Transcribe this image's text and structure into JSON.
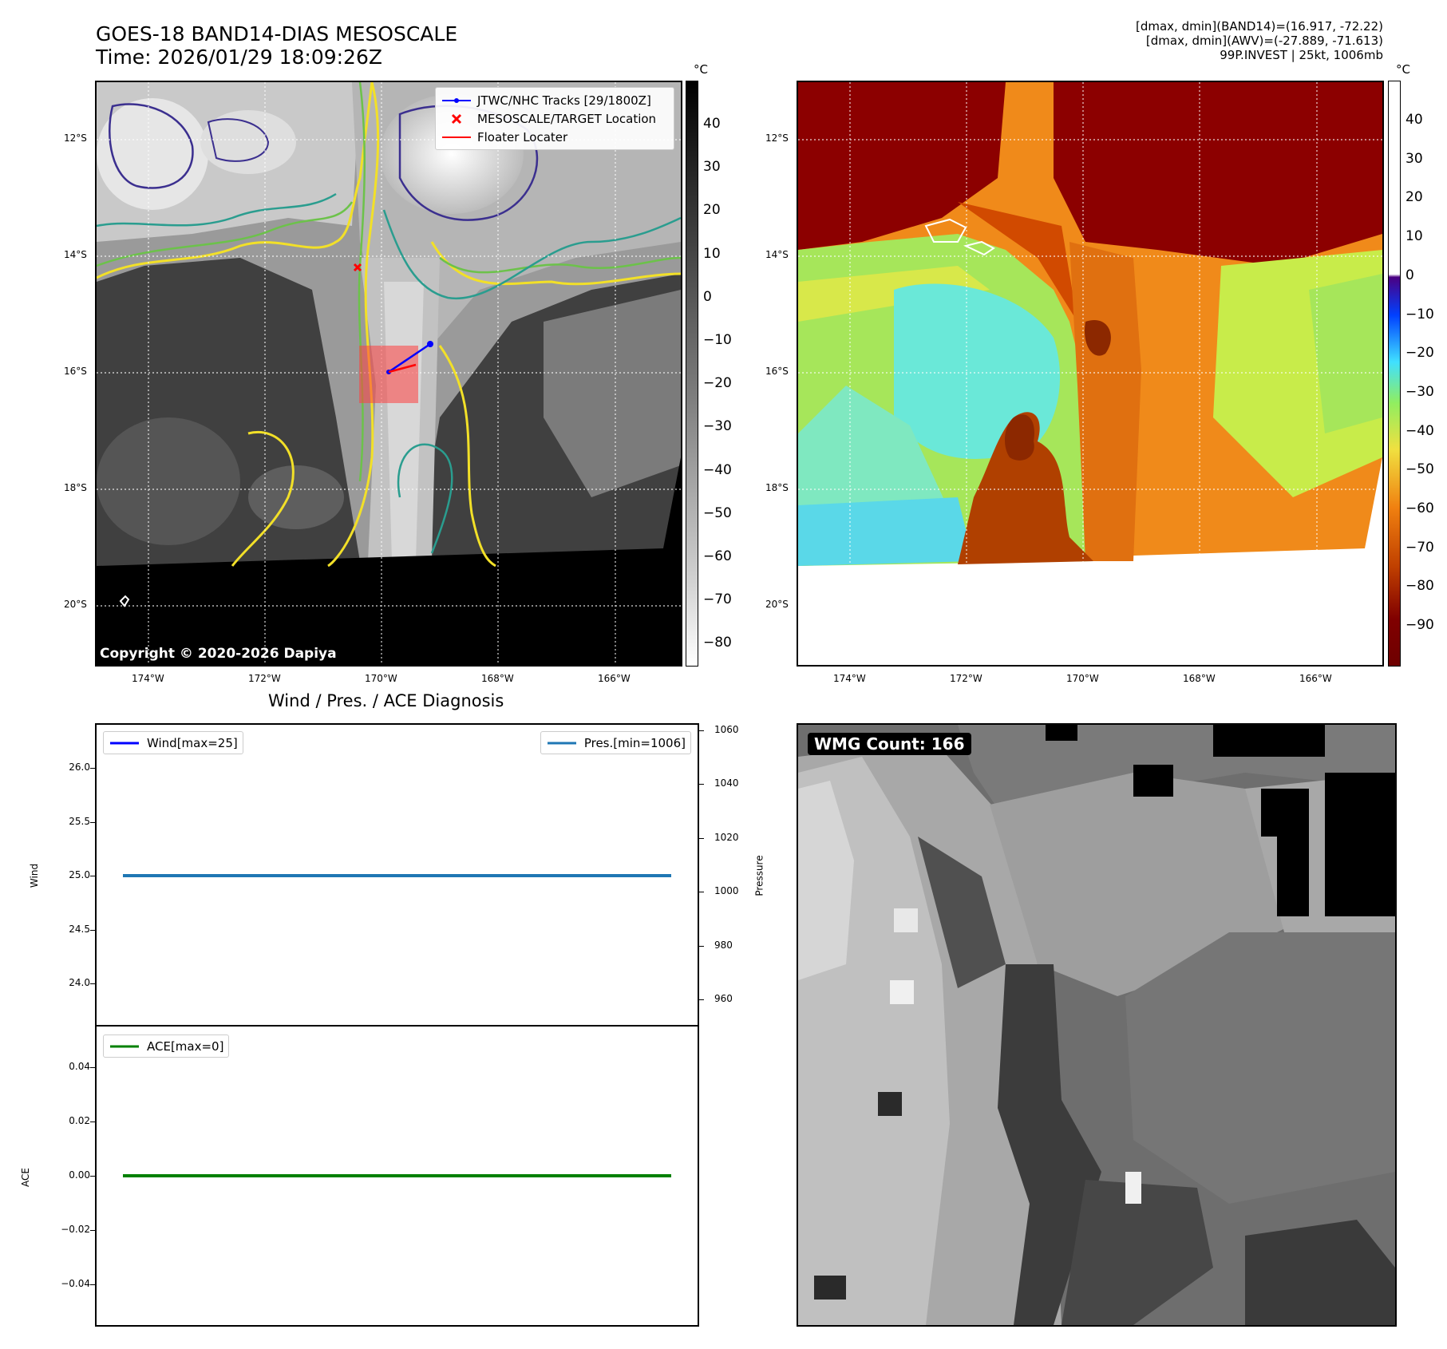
{
  "header": {
    "title_line1": "GOES-18 BAND14-DIAS MESOSCALE",
    "title_line2": "Time: 2026/01/29 18:09:26Z",
    "info_line1": "[dmax, dmin](BAND14)=(16.917, -72.22)",
    "info_line2": "[dmax, dmin](AWV)=(-27.889, -71.613)",
    "info_line3": "99P.INVEST | 25kt, 1006mb"
  },
  "map": {
    "lat_labels": [
      "12°S",
      "14°S",
      "16°S",
      "18°S",
      "20°S"
    ],
    "lon_labels": [
      "174°W",
      "172°W",
      "170°W",
      "168°W",
      "166°W"
    ],
    "copyright": "Copyright © 2020-2026 Dapiya",
    "legend": {
      "tracks": "JTWC/NHC Tracks [29/1800Z]",
      "target": "MESOSCALE/TARGET Location",
      "floater": "Floater Locater"
    },
    "colorbar_left": {
      "unit": "°C",
      "ticks": [
        "40",
        "30",
        "20",
        "10",
        "0",
        "−10",
        "−20",
        "−30",
        "−40",
        "−50",
        "−60",
        "−70",
        "−80"
      ]
    },
    "colorbar_right": {
      "unit": "°C",
      "ticks": [
        "40",
        "30",
        "20",
        "10",
        "0",
        "−10",
        "−20",
        "−30",
        "−40",
        "−50",
        "−60",
        "−70",
        "−80",
        "−90"
      ]
    },
    "colors": {
      "contour_yellow": "#f2e028",
      "contour_green": "#6cc24a",
      "contour_teal": "#2a9d8f",
      "contour_navy": "#3b2f8f",
      "track": "#0000ff",
      "floater": "#ff0000",
      "target": "#ff0000"
    }
  },
  "diagnosis": {
    "title": "Wind / Pres. / ACE Diagnosis",
    "wind_legend": "Wind[max=25]",
    "pres_legend": "Pres.[min=1006]",
    "ace_legend": "ACE[max=0]",
    "wind_ylabel": "Wind",
    "pres_ylabel": "Pressure",
    "ace_ylabel": "ACE",
    "colors": {
      "wind": "#0000ff",
      "pres": "#1f77b4",
      "ace": "#008000"
    }
  },
  "wmg": {
    "label": "WMG Count: 166"
  },
  "chart_data": [
    {
      "type": "line",
      "title": "Wind / Pres. / ACE Diagnosis",
      "ylabel": "Wind",
      "ylim": [
        23.6,
        26.4
      ],
      "yticks": [
        "26.0",
        "25.5",
        "25.0",
        "24.5",
        "24.0"
      ],
      "series": [
        {
          "name": "Wind[max=25]",
          "values": [
            25,
            25
          ]
        }
      ]
    },
    {
      "type": "line",
      "ylabel": "Pressure",
      "ylim": [
        950,
        1062
      ],
      "yticks": [
        "1060",
        "1040",
        "1020",
        "1000",
        "980",
        "960"
      ],
      "series": [
        {
          "name": "Pres.[min=1006]",
          "values": [
            1006,
            1006
          ]
        }
      ]
    },
    {
      "type": "line",
      "ylabel": "ACE",
      "ylim": [
        -0.055,
        0.055
      ],
      "yticks": [
        "0.04",
        "0.02",
        "0.00",
        "−0.02",
        "−0.04"
      ],
      "series": [
        {
          "name": "ACE[max=0]",
          "values": [
            0,
            0
          ]
        }
      ]
    }
  ]
}
